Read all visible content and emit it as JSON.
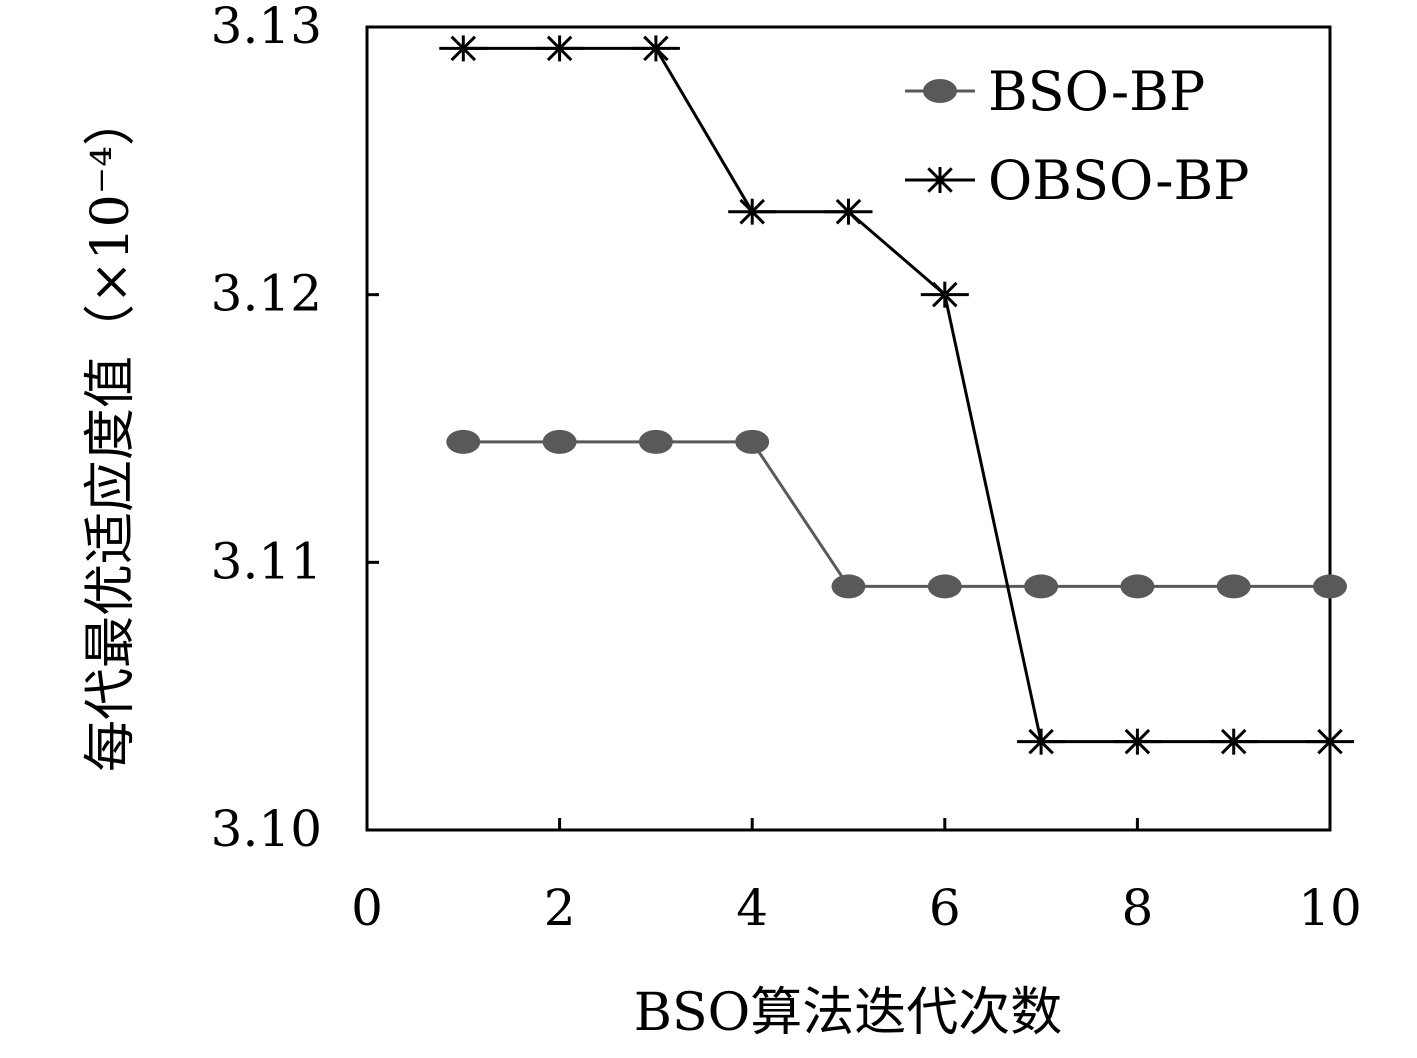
{
  "chart_data": {
    "type": "line",
    "xlabel": "BSO算法迭代次数",
    "ylabel": "每代最优适应度值（×10⁻⁴）",
    "xlim": [
      0,
      10
    ],
    "ylim": [
      3.1,
      3.13
    ],
    "x_ticks": [
      0,
      2,
      4,
      6,
      8,
      10
    ],
    "y_ticks": [
      3.1,
      3.11,
      3.12,
      3.13
    ],
    "y_tick_labels": [
      "3.10",
      "3.11",
      "3.12",
      "3.13"
    ],
    "grid": false,
    "legend_position": "top-right",
    "x": [
      1,
      2,
      3,
      4,
      5,
      6,
      7,
      8,
      9,
      10
    ],
    "series": [
      {
        "name": "BSO-BP",
        "marker": "filled-circle",
        "color": "#595959",
        "values": [
          3.1145,
          3.1145,
          3.1145,
          3.1145,
          3.1091,
          3.1091,
          3.1091,
          3.1091,
          3.1091,
          3.1091
        ]
      },
      {
        "name": "OBSO-BP",
        "marker": "asterisk",
        "color": "#000000",
        "values": [
          3.1292,
          3.1292,
          3.1292,
          3.1231,
          3.1231,
          3.12,
          3.1033,
          3.1033,
          3.1033,
          3.1033
        ]
      }
    ]
  }
}
